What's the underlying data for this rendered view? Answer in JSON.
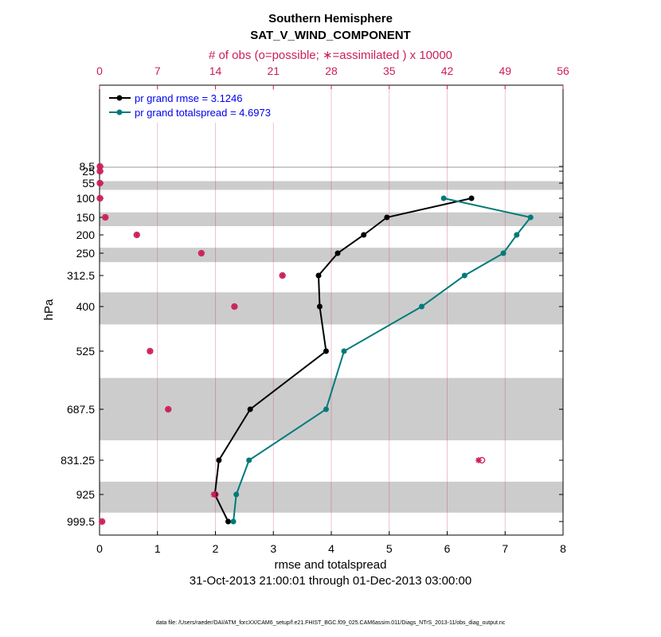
{
  "chart_data": {
    "type": "line",
    "title": "Southern Hemisphere",
    "subtitle": "SAT_V_WIND_COMPONENT",
    "top_axis_label": "# of obs (o=possible; ∗=assimilated ) x 10000",
    "xlabel": "rmse and totalspread",
    "ylabel": "hPa",
    "date_range": "31-Oct-2013 21:00:01 through 01-Dec-2013 03:00:00",
    "footer": "data file: /Users/raeder/DAI/ATM_forcXX/CAM6_setup/f.e21.FHIST_BGC.f09_025.CAM6assim.011/Diags_NTrS_2013-11/obs_diag_output.nc",
    "xlim": [
      0,
      8
    ],
    "xticks": [
      "0",
      "1",
      "2",
      "3",
      "4",
      "5",
      "6",
      "7",
      "8"
    ],
    "top_xlim": [
      0,
      56
    ],
    "top_xticks": [
      "0",
      "7",
      "14",
      "21",
      "28",
      "35",
      "42",
      "49",
      "56"
    ],
    "y_scale": "reversed, non-linear pressure levels",
    "y_levels": [
      8.5,
      25,
      55,
      100,
      150,
      200,
      250,
      312.5,
      400,
      525,
      687.5,
      831.25,
      925,
      999.5
    ],
    "y_tick_labels": [
      "8.5",
      "25",
      "55",
      "100",
      "150",
      "200",
      "250",
      "312.5",
      "400",
      "525",
      "687.5",
      "831.25",
      "925",
      "999.5"
    ],
    "legend_position": "top-left",
    "grid": "vertical only",
    "bands": [
      [
        8.5,
        12
      ],
      [
        50,
        75
      ],
      [
        137,
        175
      ],
      [
        235,
        275
      ],
      [
        360,
        450
      ],
      [
        600,
        775
      ],
      [
        890,
        975
      ]
    ],
    "series": [
      {
        "name": "pr grand rmse = 3.1246",
        "color": "#000000",
        "levels": [
          100,
          150,
          200,
          250,
          312.5,
          400,
          525,
          687.5,
          831.25,
          925,
          999.5
        ],
        "values": [
          6.42,
          4.96,
          4.56,
          4.11,
          3.78,
          3.8,
          3.91,
          2.6,
          2.06,
          1.99,
          2.22
        ]
      },
      {
        "name": "pr grand totalspread = 4.6973",
        "color": "#007a7a",
        "levels": [
          100,
          150,
          200,
          250,
          312.5,
          400,
          525,
          687.5,
          831.25,
          925,
          999.5
        ],
        "values": [
          5.94,
          7.44,
          7.2,
          6.97,
          6.3,
          5.56,
          4.22,
          3.91,
          2.58,
          2.36,
          2.31
        ]
      }
    ],
    "obs_counts": {
      "color": "#cc1e5a",
      "levels": [
        8.5,
        25,
        55,
        100,
        150,
        200,
        250,
        312.5,
        400,
        525,
        687.5,
        831.25,
        925,
        999.5
      ],
      "possible": [
        0.05,
        0.05,
        0.05,
        0.05,
        0.7,
        4.5,
        12.3,
        22.1,
        16.3,
        6.1,
        8.3,
        46.2,
        14.0,
        0.3
      ],
      "assimilated": [
        0.05,
        0.05,
        0.05,
        0.05,
        0.7,
        4.5,
        12.3,
        22.1,
        16.3,
        6.1,
        8.3,
        45.8,
        13.8,
        0.3
      ]
    }
  }
}
